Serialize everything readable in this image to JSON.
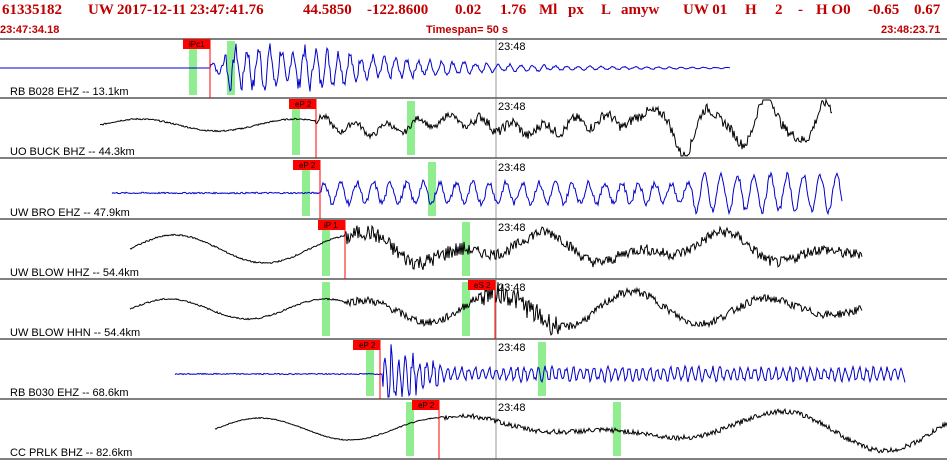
{
  "header": {
    "event_id": "61335182",
    "network": "UW",
    "datetime": "2017-12-11 23:47:41.76",
    "lat": "44.5850",
    "lon": "-122.8600",
    "depth": "0.02",
    "magnitude": "1.76",
    "mag_type": "Ml",
    "event_type": "px",
    "quality": "L",
    "author": "amyw",
    "source": "UW 01",
    "h_code": "H",
    "n2": "2",
    "dash": "-",
    "h0": "H O0",
    "v1": "-0.65",
    "v2": "0.67"
  },
  "subheader": {
    "start_time": "23:47:34.18",
    "timespan": "Timespan=  50 s",
    "end_time": "23:48:23.71"
  },
  "colors": {
    "header": "#c00000",
    "blue": "#0000cc",
    "black": "#000000",
    "pick": "#ff0000",
    "marker": "#90ee90"
  },
  "traces": [
    {
      "station": "RB B028 EHZ -- 13.1km",
      "minute": "23:48",
      "pick": "iPc1",
      "color": "blue"
    },
    {
      "station": "UO BUCK BHZ -- 44.3km",
      "minute": "23:48",
      "pick": "eP 2",
      "color": "black"
    },
    {
      "station": "UW BRO EHZ -- 47.9km",
      "minute": "23:48",
      "pick": "eP 2",
      "color": "blue"
    },
    {
      "station": "UW BLOW HHZ -- 54.4km",
      "minute": "23:48",
      "pick": "iP 1",
      "color": "black"
    },
    {
      "station": "UW BLOW HHN -- 54.4km",
      "minute": "23:48",
      "pick": "eS 2",
      "color": "black"
    },
    {
      "station": "RB B030 EHZ -- 68.6km",
      "minute": "23:48",
      "pick": "eP 2",
      "color": "blue"
    },
    {
      "station": "CC PRLK BHZ -- 82.6km",
      "minute": "23:48",
      "pick": "eP 2",
      "color": "black"
    }
  ]
}
